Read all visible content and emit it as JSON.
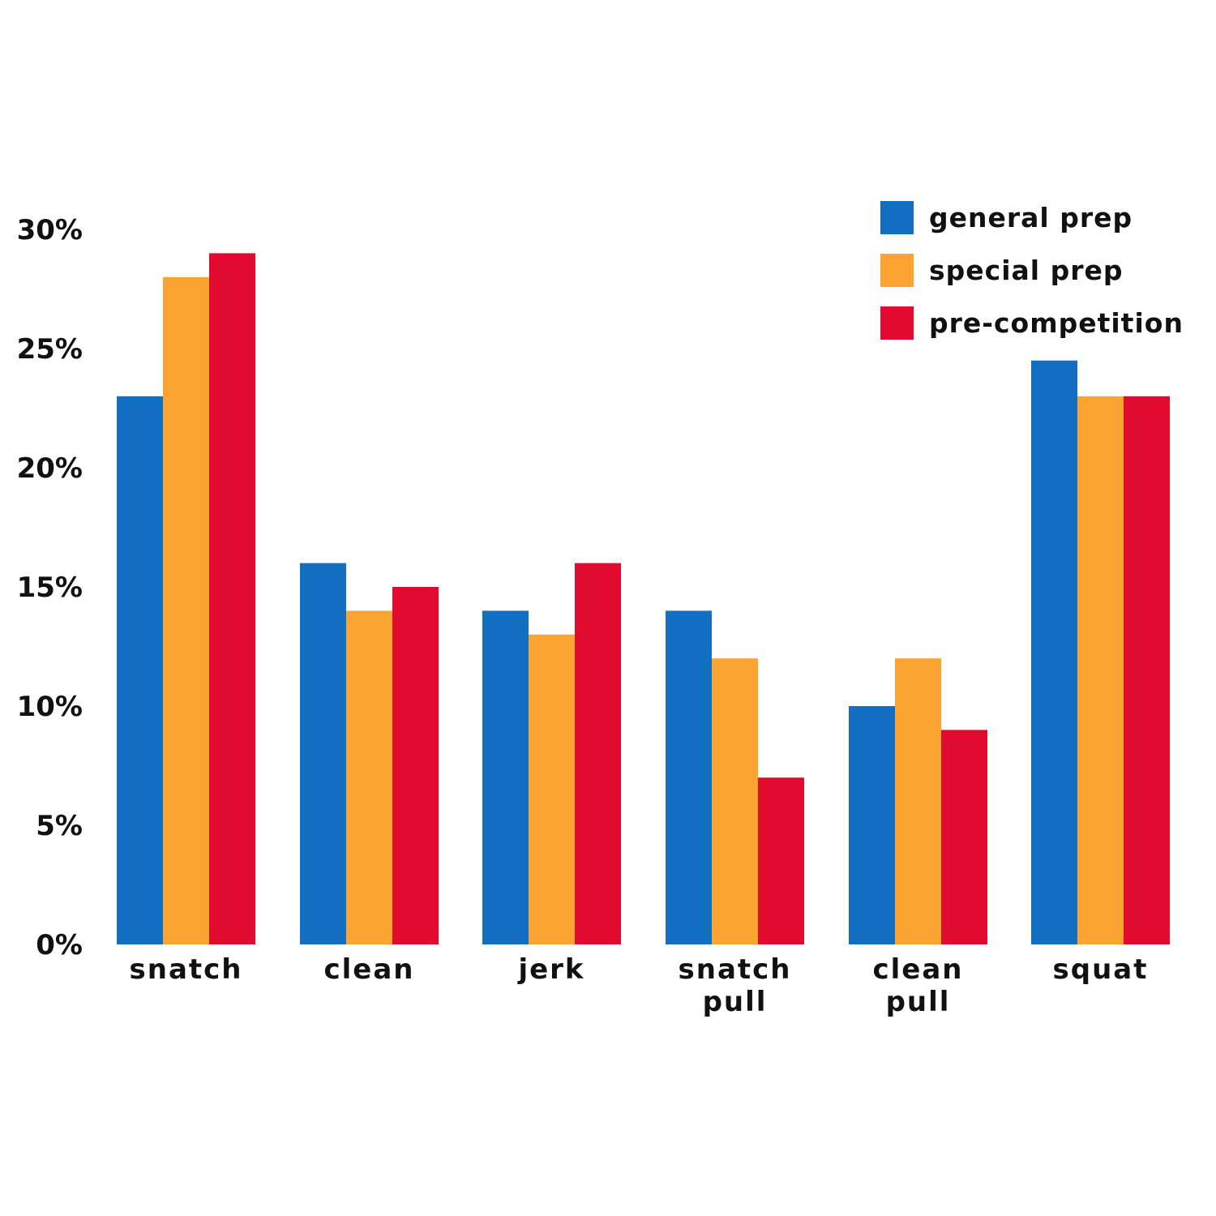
{
  "chart_data": {
    "type": "bar",
    "categories": [
      "snatch",
      "clean",
      "jerk",
      "snatch pull",
      "clean pull",
      "squat"
    ],
    "series": [
      {
        "name": "general prep",
        "color": "#126FC1",
        "values": [
          23,
          16,
          14,
          14,
          10,
          24.5
        ]
      },
      {
        "name": "special prep",
        "color": "#FBA432",
        "values": [
          28,
          14,
          13,
          12,
          12,
          23
        ]
      },
      {
        "name": "pre-competition",
        "color": "#E00B2E",
        "values": [
          29,
          15,
          16,
          7,
          9,
          23
        ]
      }
    ],
    "y_ticks": [
      0,
      5,
      10,
      15,
      20,
      25,
      30
    ],
    "y_tick_labels": [
      "0%",
      "5%",
      "10%",
      "15%",
      "20%",
      "25%",
      "30%"
    ],
    "ylim": [
      0,
      30
    ],
    "grid": false,
    "legend_position": "top-right"
  }
}
